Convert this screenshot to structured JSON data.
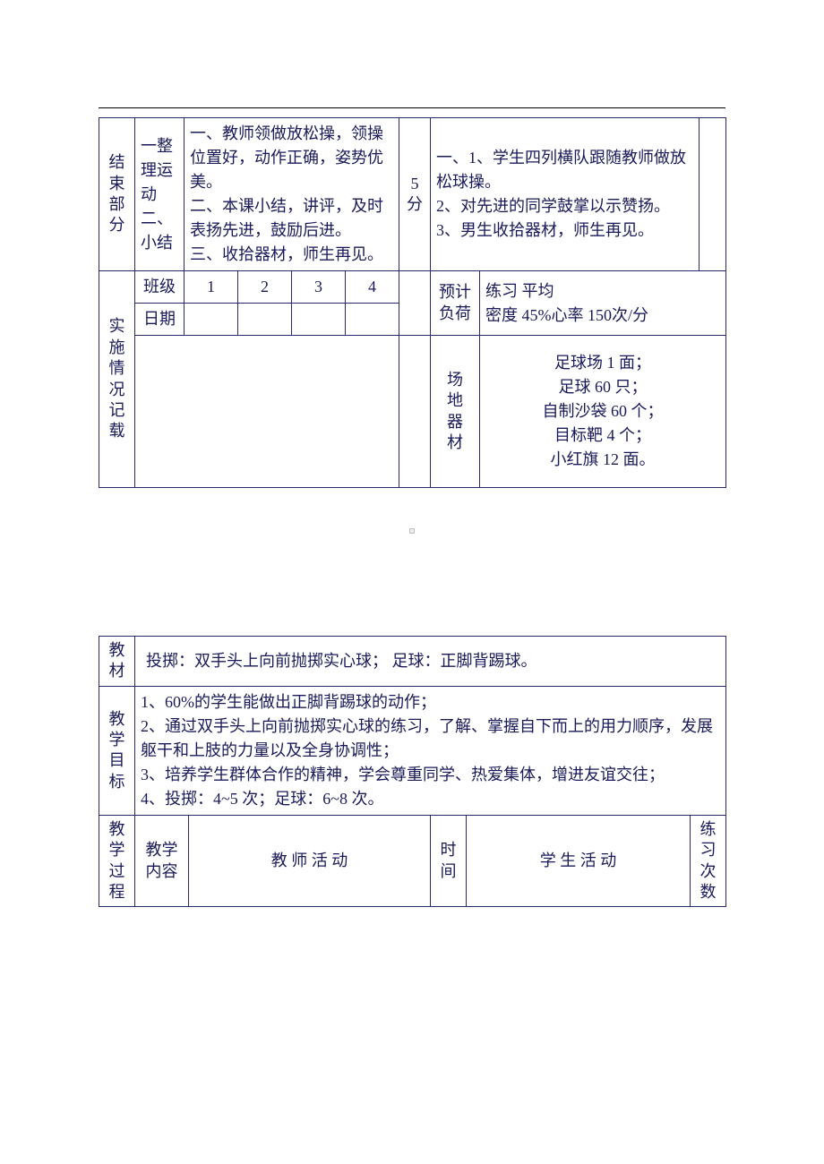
{
  "colors": {
    "border": "#2a2a6a",
    "text": "#1a1a5a",
    "background": "#ffffff"
  },
  "typography": {
    "font_family": "SimSun",
    "base_fontsize_pt": 14,
    "line_height": 1.5
  },
  "table1": {
    "r1": {
      "c1": "结束部分",
      "c2": "一整理运动\n二、小结",
      "c3": "一、教师领做放松操，领操位置好，动作正确，姿势优美。\n二、本课小结，讲评，及时表扬先进，鼓励后进。\n三、收拾器材，师生再见。",
      "c4": "5分",
      "c5": "一、1、学生四列横队跟随教师做放松球操。\n2、对先进的同学鼓掌以示赞扬。\n3、男生收拾器材，师生再见。"
    },
    "r2": {
      "label_row": "实施情况记载",
      "class_label": "班级",
      "date_label": "日期",
      "nums": [
        "1",
        "2",
        "3",
        "4"
      ],
      "expected_load": "预计负荷",
      "load_text": "练习     平均\n密度 45%心率 150次/分",
      "venue_label": "场地器材",
      "venue_text": "足球场 1 面；\n足球 60 只；\n自制沙袋 60 个；\n目标靶 4 个；\n小红旗 12 面。"
    }
  },
  "table2": {
    "r1": {
      "label": "教材",
      "content": "投掷：双手头上向前抛掷实心球；        足球：正脚背踢球。"
    },
    "r2": {
      "label": "教学目标",
      "content": "1、60%的学生能做出正脚背踢球的动作；\n2、通过双手头上向前抛掷实心球的练习，了解、掌握自下而上的用力顺序，发展躯干和上肢的力量以及全身协调性；\n3、培养学生群体合作的精神，学会尊重同学、热爱集体，增进友谊交往；\n4、投掷：4~5 次；足球：6~8 次。"
    },
    "r3": {
      "label": "教学过程",
      "c2": "教学内容",
      "c3": "教  师  活  动",
      "c4": "时间",
      "c5": "学  生  活  动",
      "c6": "练习次数"
    }
  }
}
